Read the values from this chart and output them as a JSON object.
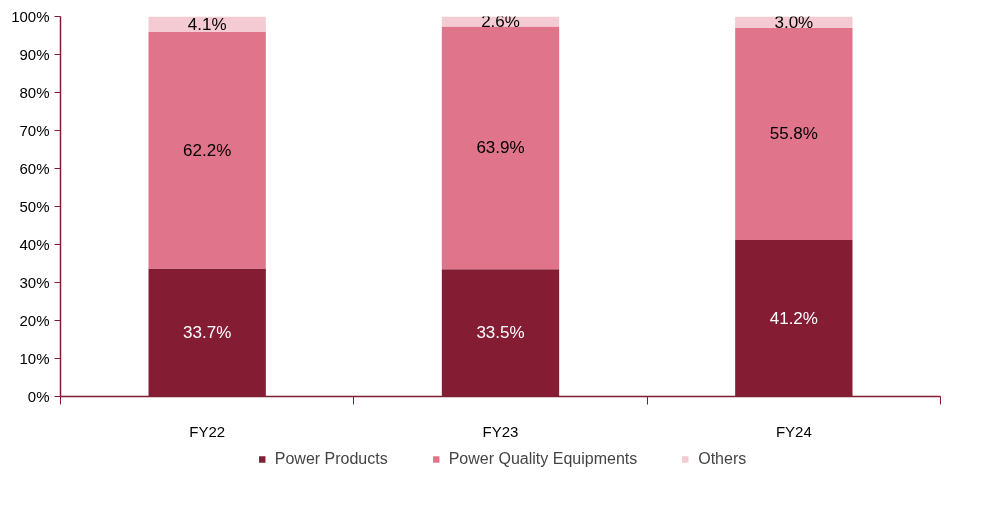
{
  "chart_data": {
    "type": "bar",
    "stacked": true,
    "categories": [
      "FY22",
      "FY23",
      "FY24"
    ],
    "series": [
      {
        "name": "Power Products",
        "color": "#841c34",
        "values": [
          33.7,
          33.5,
          41.2
        ],
        "value_labels": [
          "33.7%",
          "33.5%",
          "41.2%"
        ]
      },
      {
        "name": "Power Quality Equipments",
        "color": "#df748a",
        "values": [
          62.2,
          63.9,
          55.8
        ],
        "value_labels": [
          "62.2%",
          "63.9%",
          "55.8%"
        ]
      },
      {
        "name": "Others",
        "color": "#f4cad3",
        "values": [
          4.1,
          2.6,
          3.0
        ],
        "value_labels": [
          "4.1%",
          "2.6%",
          "3.0%"
        ]
      }
    ],
    "ylim": [
      0,
      100
    ],
    "yticks": [
      {
        "value": 0,
        "label": "0%"
      },
      {
        "value": 10,
        "label": "10%"
      },
      {
        "value": 20,
        "label": "20%"
      },
      {
        "value": 30,
        "label": "30%"
      },
      {
        "value": 40,
        "label": "40%"
      },
      {
        "value": 50,
        "label": "50%"
      },
      {
        "value": 60,
        "label": "60%"
      },
      {
        "value": 70,
        "label": "70%"
      },
      {
        "value": 80,
        "label": "80%"
      },
      {
        "value": 90,
        "label": "90%"
      },
      {
        "value": 100,
        "label": "100%"
      }
    ],
    "grid": false,
    "legend": "bottom"
  }
}
